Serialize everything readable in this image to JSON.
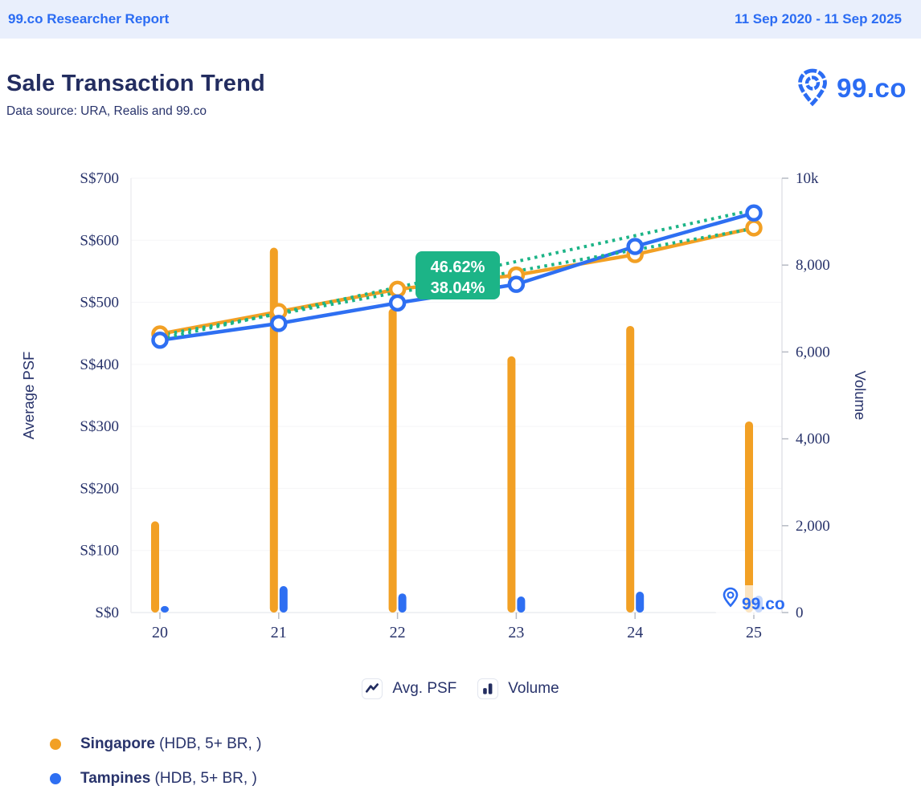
{
  "header": {
    "left": "99.co Researcher Report",
    "right": "11 Sep 2020 - 11 Sep 2025"
  },
  "title_block": {
    "title": "Sale Transaction Trend",
    "subtitle": "Data source: URA, Realis and 99.co",
    "brand": "99.co"
  },
  "top_legend": [
    {
      "label": "Avg. PSF"
    },
    {
      "label": "Volume"
    }
  ],
  "series_legend": [
    {
      "name": "Singapore",
      "suffix": " (HDB, 5+ BR, )",
      "color": "#F2A024"
    },
    {
      "name": "Tampines",
      "suffix": " (HDB, 5+ BR, )",
      "color": "#2E6FF2"
    }
  ],
  "colors": {
    "accent_blue": "#2B6CF3",
    "navy_text": "#28336b",
    "header_bg": "#E9EFFC",
    "orange": "#F2A024",
    "blue": "#2E6FF2",
    "green": "#1CB487",
    "gridline": "#f5f5f7",
    "axis_line": "#e2e3e8"
  },
  "chart_data": {
    "type": "composite line+bar, dual axis",
    "categories": [
      "20",
      "21",
      "22",
      "23",
      "24",
      "25"
    ],
    "left_axis": {
      "label": "Average PSF",
      "tick_prefix": "S$",
      "ticks": [
        "S$0",
        "S$100",
        "S$200",
        "S$300",
        "S$400",
        "S$500",
        "S$600",
        "S$700"
      ],
      "min": 0,
      "max": 700,
      "step": 100
    },
    "right_axis": {
      "label": "Volume",
      "ticks": [
        "0",
        "2,000",
        "4,000",
        "6,000",
        "8,000",
        "10k"
      ],
      "min": 0,
      "max": 10000,
      "step": 2000
    },
    "lines": [
      {
        "name": "Singapore Avg. PSF",
        "color": "#F2A024",
        "values": [
          449,
          485,
          521,
          544,
          577,
          620
        ]
      },
      {
        "name": "Tampines Avg. PSF",
        "color": "#2E6FF2",
        "values": [
          439,
          466,
          499,
          529,
          590,
          644
        ]
      }
    ],
    "bars": [
      {
        "name": "Singapore Volume",
        "color": "#F2A024",
        "values": [
          2100,
          8400,
          7000,
          5900,
          6600,
          4400
        ]
      },
      {
        "name": "Tampines Volume",
        "color": "#2E6FF2",
        "values": [
          150,
          610,
          440,
          370,
          480,
          390
        ]
      }
    ],
    "trend_lines": [
      {
        "name": "Tampines trend",
        "color": "#1CB487",
        "start": 441,
        "end": 649
      },
      {
        "name": "Singapore trend",
        "color": "#1CB487",
        "start": 447,
        "end": 619
      }
    ],
    "annotation": {
      "lines": [
        "46.62%",
        "38.04%"
      ],
      "bg": "#1CB487",
      "text_color": "#ffffff"
    },
    "watermark": "99.co",
    "legend_position": "bottom-center",
    "grid": "horizontal, very light"
  }
}
